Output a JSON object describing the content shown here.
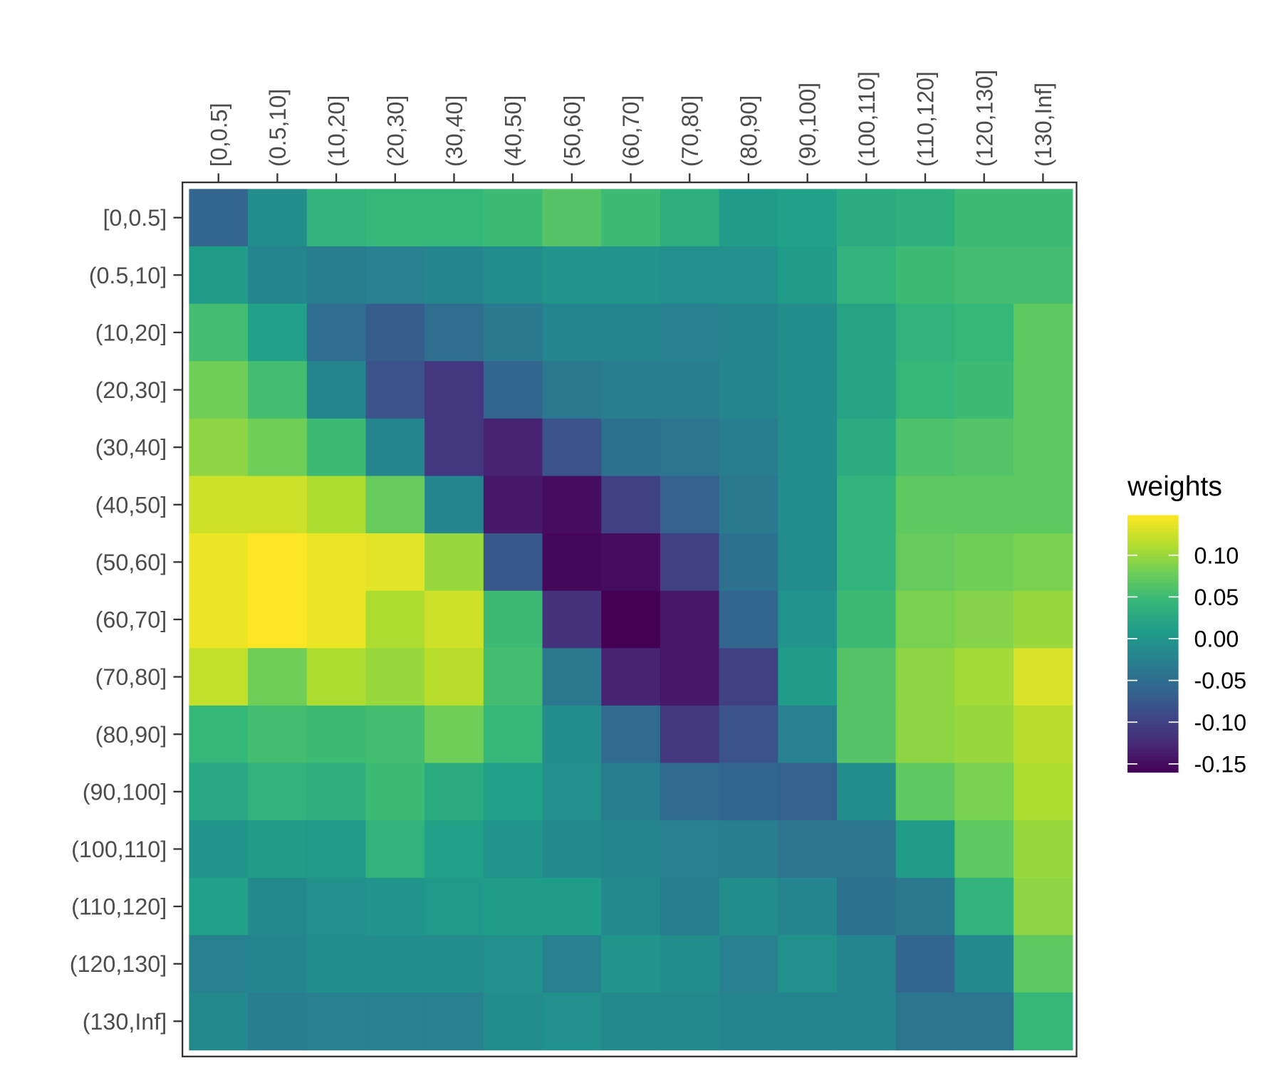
{
  "chart_data": {
    "type": "heatmap",
    "legend_title": "weights",
    "x_categories": [
      "[0,0.5]",
      "(0.5,10]",
      "(10,20]",
      "(20,30]",
      "(30,40]",
      "(40,50]",
      "(50,60]",
      "(60,70]",
      "(70,80]",
      "(80,90]",
      "(90,100]",
      "(100,110]",
      "(110,120]",
      "(120,130]",
      "(130,Inf]"
    ],
    "y_categories": [
      "[0,0.5]",
      "(0.5,10]",
      "(10,20]",
      "(20,30]",
      "(30,40]",
      "(40,50]",
      "(50,60]",
      "(60,70]",
      "(70,80]",
      "(80,90]",
      "(90,100]",
      "(100,110]",
      "(110,120]",
      "(120,130]",
      "(130,Inf]"
    ],
    "values": [
      [
        -0.06,
        -0.01,
        0.04,
        0.045,
        0.045,
        0.05,
        0.065,
        0.05,
        0.035,
        0.01,
        0.015,
        0.03,
        0.035,
        0.05,
        0.05
      ],
      [
        0.01,
        -0.02,
        -0.03,
        -0.025,
        -0.02,
        -0.01,
        0.0,
        0.0,
        -0.005,
        -0.005,
        0.01,
        0.04,
        0.05,
        0.055,
        0.055
      ],
      [
        0.055,
        0.015,
        -0.05,
        -0.07,
        -0.05,
        -0.035,
        -0.02,
        -0.02,
        -0.025,
        -0.02,
        -0.01,
        0.02,
        0.04,
        0.045,
        0.07
      ],
      [
        0.08,
        0.055,
        -0.02,
        -0.08,
        -0.11,
        -0.06,
        -0.035,
        -0.03,
        -0.03,
        -0.02,
        -0.01,
        0.02,
        0.045,
        0.05,
        0.07
      ],
      [
        0.095,
        0.08,
        0.05,
        -0.02,
        -0.11,
        -0.13,
        -0.08,
        -0.045,
        -0.04,
        -0.03,
        -0.01,
        0.03,
        0.06,
        0.065,
        0.07
      ],
      [
        0.125,
        0.125,
        0.11,
        0.075,
        -0.02,
        -0.14,
        -0.15,
        -0.1,
        -0.065,
        -0.035,
        -0.01,
        0.04,
        0.07,
        0.07,
        0.07
      ],
      [
        0.14,
        0.148,
        0.14,
        0.135,
        0.1,
        -0.075,
        -0.155,
        -0.15,
        -0.1,
        -0.045,
        -0.01,
        0.04,
        0.075,
        0.08,
        0.085
      ],
      [
        0.14,
        0.148,
        0.14,
        0.11,
        0.125,
        0.05,
        -0.115,
        -0.16,
        -0.14,
        -0.06,
        0.0,
        0.05,
        0.085,
        0.09,
        0.1
      ],
      [
        0.12,
        0.08,
        0.11,
        0.1,
        0.115,
        0.055,
        -0.035,
        -0.13,
        -0.14,
        -0.1,
        0.01,
        0.065,
        0.095,
        0.105,
        0.13
      ],
      [
        0.045,
        0.055,
        0.05,
        0.055,
        0.08,
        0.045,
        -0.01,
        -0.055,
        -0.11,
        -0.08,
        -0.025,
        0.065,
        0.095,
        0.1,
        0.115
      ],
      [
        0.025,
        0.04,
        0.035,
        0.05,
        0.03,
        0.015,
        -0.005,
        -0.03,
        -0.055,
        -0.06,
        -0.065,
        -0.01,
        0.07,
        0.085,
        0.11
      ],
      [
        0.0,
        0.01,
        0.005,
        0.04,
        0.015,
        0.0,
        -0.015,
        -0.02,
        -0.025,
        -0.03,
        -0.04,
        -0.04,
        0.01,
        0.07,
        0.1
      ],
      [
        0.015,
        -0.015,
        -0.005,
        0.0,
        0.005,
        0.01,
        0.01,
        -0.015,
        -0.03,
        -0.01,
        -0.02,
        -0.045,
        -0.035,
        0.04,
        0.095
      ],
      [
        -0.025,
        -0.02,
        -0.01,
        -0.01,
        -0.01,
        -0.005,
        -0.025,
        0.0,
        -0.01,
        -0.025,
        -0.005,
        -0.02,
        -0.06,
        -0.015,
        0.07
      ],
      [
        -0.015,
        -0.03,
        -0.025,
        -0.025,
        -0.025,
        -0.01,
        -0.005,
        -0.015,
        -0.015,
        -0.02,
        -0.02,
        -0.02,
        -0.04,
        -0.04,
        0.045
      ]
    ],
    "zlim": [
      -0.16,
      0.148
    ],
    "zticks": [
      -0.15,
      {
        "value": -0.1,
        "label": "-0.10"
      },
      -0.05,
      {
        "value": 0,
        "label": "0.00"
      },
      0.05,
      {
        "value": 0.1,
        "label": "0.10"
      }
    ],
    "colorscale": [
      "#440154",
      "#482878",
      "#3e4989",
      "#31688e",
      "#26828e",
      "#1f9e89",
      "#35b779",
      "#6ece58",
      "#b5de2b",
      "#fde725"
    ]
  }
}
